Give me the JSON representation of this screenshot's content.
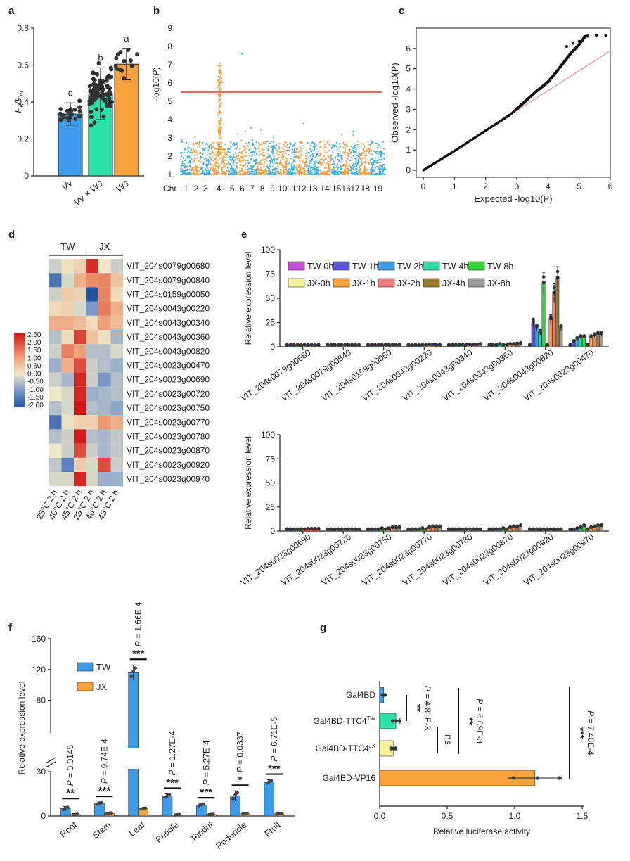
{
  "chart_data": [
    {
      "panel": "a",
      "type": "bar",
      "categories": [
        "Vv",
        "Vv × Ws",
        "Ws"
      ],
      "values": [
        0.335,
        0.445,
        0.605
      ],
      "errors": [
        0.06,
        0.14,
        0.085
      ],
      "letters": [
        "c",
        "b",
        "a"
      ],
      "colors": [
        "#3d9be9",
        "#2ee0a8",
        "#f7a23a"
      ],
      "ylim": [
        0,
        0.8
      ],
      "yticks": [
        "0",
        "0.2",
        "0.4",
        "0.6",
        "0.8"
      ],
      "ylabel_main": "F",
      "ylabel_sub1": "v",
      "ylabel_sep": "/F",
      "ylabel_sub2": "m"
    },
    {
      "panel": "b",
      "type": "scatter",
      "xlabel": "Chr",
      "categories": [
        "1",
        "2",
        "3",
        "4",
        "5",
        "6",
        "7",
        "8",
        "9",
        "10",
        "11",
        "12",
        "13",
        "14",
        "15",
        "16",
        "17",
        "18",
        "19"
      ],
      "ylabel": "-log10(P)",
      "ylim": [
        1,
        9
      ],
      "yticks": [
        "1",
        "2",
        "3",
        "4",
        "5",
        "6",
        "7",
        "8",
        "9"
      ],
      "threshold": 5.5,
      "colors": [
        "#3aaee8",
        "#f39c3a"
      ],
      "peak_chr": "4",
      "peak_value": 7.1
    },
    {
      "panel": "c",
      "type": "scatter",
      "xlabel": "Expected -log10(P)",
      "ylabel": "Observed -log10(P)",
      "xlim": [
        0,
        6
      ],
      "ylim": [
        0,
        7
      ],
      "xticks": [
        "0",
        "1",
        "2",
        "3",
        "4",
        "5",
        "6"
      ],
      "yticks": [
        "0",
        "1",
        "2",
        "3",
        "4",
        "5",
        "6"
      ],
      "points": [
        [
          0,
          0
        ],
        [
          1,
          0.95
        ],
        [
          2,
          1.95
        ],
        [
          2.8,
          2.75
        ],
        [
          3.2,
          3.3
        ],
        [
          3.6,
          3.85
        ],
        [
          4,
          4.35
        ],
        [
          4.3,
          4.9
        ],
        [
          4.5,
          5.3
        ],
        [
          4.7,
          5.7
        ],
        [
          5,
          6.2
        ],
        [
          5.2,
          6.6
        ],
        [
          5.6,
          6.65
        ],
        [
          5.9,
          6.65
        ]
      ]
    },
    {
      "panel": "d",
      "type": "heatmap",
      "groups": [
        "TW",
        "JX"
      ],
      "columns": [
        "25°C 2 h",
        "40°C 2 h",
        "45°C 2 h",
        "25°C 2 h",
        "40°C 2 h",
        "45°C 2 h"
      ],
      "rows": [
        "VIT_204s0079g00680",
        "VIT_204s0079g00840",
        "VIT_204s0159g00050",
        "VIT_204s0043g00220",
        "VIT_204s0043g00340",
        "VIT_204s0043g00360",
        "VIT_204s0043g00820",
        "VIT_204s0023g00470",
        "VIT_204s0023g00690",
        "VIT_204s0023g00720",
        "VIT_204s0023g00750",
        "VIT_204s0023g00770",
        "VIT_204s0023g00780",
        "VIT_204s0023g00870",
        "VIT_204s0023g00920",
        "VIT_204s0023g00970"
      ],
      "values": [
        [
          -0.3,
          0.1,
          0.3,
          2.2,
          0.0,
          -0.3
        ],
        [
          -1.5,
          -0.2,
          0.8,
          1.2,
          1.3,
          0.5
        ],
        [
          -0.3,
          0.4,
          0.3,
          -2.0,
          1.3,
          0.2
        ],
        [
          0.2,
          0.3,
          -0.2,
          -1.0,
          1.4,
          0.8
        ],
        [
          0.8,
          0.8,
          0.6,
          0.2,
          1.0,
          0.6
        ],
        [
          -0.5,
          0.2,
          2.0,
          0.5,
          0.1,
          -0.6
        ],
        [
          -0.3,
          1.3,
          1.0,
          -0.5,
          -0.5,
          -0.2
        ],
        [
          -0.7,
          0.8,
          1.9,
          -0.3,
          -0.5,
          -0.7
        ],
        [
          -0.3,
          -0.6,
          2.3,
          -0.3,
          -1.0,
          -0.5
        ],
        [
          0.0,
          -0.2,
          2.3,
          -0.7,
          -0.6,
          -0.5
        ],
        [
          -0.5,
          -0.2,
          2.5,
          -0.5,
          -0.6,
          -0.8
        ],
        [
          -1.5,
          0.1,
          0.3,
          0.3,
          1.1,
          0.8
        ],
        [
          -0.5,
          -0.3,
          2.4,
          -0.5,
          -0.6,
          -0.4
        ],
        [
          0.0,
          -0.3,
          1.9,
          -0.3,
          -0.6,
          -0.4
        ],
        [
          -0.4,
          -1.3,
          0.4,
          -0.2,
          1.9,
          -0.3
        ],
        [
          -0.2,
          -0.2,
          2.3,
          -0.2,
          -0.7,
          -0.7
        ]
      ],
      "legend_ticks": [
        "2.50",
        "2.00",
        "1.50",
        "1.00",
        "0.50",
        "0.00",
        "-0.50",
        "-1.00",
        "-1.50",
        "-2.00"
      ],
      "vmin": -2.0,
      "vmax": 2.5
    },
    {
      "panel": "e",
      "type": "bar",
      "ylabel": "Relative expression level",
      "ylim": [
        0,
        100
      ],
      "yticks": [
        "0",
        "25",
        "50",
        "75",
        "100"
      ],
      "series": [
        {
          "name": "TW-0h",
          "color": "#c84fd8"
        },
        {
          "name": "TW-1h",
          "color": "#5a55e0"
        },
        {
          "name": "TW-2h",
          "color": "#3d9be9"
        },
        {
          "name": "TW-4h",
          "color": "#2ee0a8"
        },
        {
          "name": "TW-8h",
          "color": "#35d63a"
        },
        {
          "name": "JX-0h",
          "color": "#f8f39a"
        },
        {
          "name": "JX-1h",
          "color": "#f7a23a"
        },
        {
          "name": "JX-2h",
          "color": "#ef7e7e"
        },
        {
          "name": "JX-4h",
          "color": "#9a7a2e"
        },
        {
          "name": "JX-8h",
          "color": "#9a9a9a"
        }
      ],
      "top_genes": [
        "VIT_204s0079g00680",
        "VIT_204s0079g00840",
        "VIT_204s0159g00050",
        "VIT_204s0043g00220",
        "VIT_204s0043g00340",
        "VIT_204s0043g00360",
        "VIT_204s0043g00820",
        "VIT_204s0023g00470"
      ],
      "top_values": [
        [
          1,
          1,
          1,
          1,
          1,
          1,
          1,
          1,
          1,
          1
        ],
        [
          1,
          1,
          1,
          1,
          1,
          1,
          1,
          1,
          1,
          1
        ],
        [
          1,
          1,
          1,
          1,
          1,
          1,
          1,
          1,
          1,
          1
        ],
        [
          1,
          1,
          1,
          1,
          1,
          1,
          1.5,
          1.5,
          1,
          1
        ],
        [
          1,
          1,
          1,
          1,
          1,
          1,
          1.5,
          1.5,
          1.5,
          2
        ],
        [
          1,
          1,
          1,
          2,
          1,
          1,
          2,
          2,
          2.5,
          3
        ],
        [
          1,
          25,
          20,
          15,
          65,
          1,
          28,
          55,
          70,
          20
        ],
        [
          1,
          5,
          8,
          10,
          10,
          1,
          10,
          12,
          13,
          13
        ]
      ],
      "bottom_genes": [
        "VIT_204s0023g00690",
        "VIT_204s0023g00720",
        "VIT_204s0023g00750",
        "VIT_204s0023g00770",
        "VIT_204s0023g00780",
        "VIT_204s0023g00870",
        "VIT_204s0023g00920",
        "VIT_204s0023g00970"
      ],
      "bottom_values": [
        [
          1,
          1,
          1,
          1,
          1,
          1,
          1.5,
          1.5,
          1.5,
          1.5
        ],
        [
          1,
          1,
          1,
          1,
          1,
          1,
          1,
          1,
          1,
          1
        ],
        [
          1,
          1,
          1,
          1,
          2,
          1,
          2,
          3,
          3,
          3
        ],
        [
          1,
          1,
          1,
          1,
          2,
          1,
          3,
          4,
          4,
          4
        ],
        [
          1,
          1,
          1,
          1,
          1,
          1,
          1,
          1,
          1,
          1
        ],
        [
          1,
          1,
          1,
          1,
          2,
          1,
          3,
          4,
          4,
          5
        ],
        [
          1,
          1,
          1,
          1,
          1,
          1,
          1,
          1,
          1,
          1
        ],
        [
          1,
          1,
          2,
          3,
          5,
          1,
          3,
          4,
          5,
          5
        ]
      ]
    },
    {
      "panel": "f",
      "type": "bar",
      "categories": [
        "Root",
        "Stem",
        "Leaf",
        "Petiole",
        "Tendril",
        "Poduncle",
        "Fruit"
      ],
      "series": [
        {
          "name": "TW",
          "color": "#3d9be9",
          "values": [
            5.0,
            8.5,
            116,
            13.5,
            7.5,
            13.5,
            23
          ],
          "errors": [
            1.5,
            1.0,
            10,
            1.5,
            1.0,
            3.5,
            1.5
          ]
        },
        {
          "name": "JX",
          "color": "#f7a23a",
          "values": [
            1.0,
            1.8,
            5.0,
            0.8,
            1.0,
            1.5,
            1.5
          ],
          "errors": [
            0.3,
            0.5,
            0.5,
            0.3,
            0.3,
            0.3,
            0.3
          ]
        }
      ],
      "pvalues": [
        "P = 0.0145",
        "P = 9.74E-4",
        "P = 1.66E-4",
        "P = 1.27E-4",
        "P = 5.27E-4",
        "P = 0.0337",
        "P = 6.71E-5"
      ],
      "stars": [
        "**",
        "***",
        "***",
        "***",
        "***",
        "*",
        "***"
      ],
      "ylabel": "Relative expression level",
      "yticks": [
        "0",
        "30",
        "80",
        "120",
        "160"
      ],
      "break_low": [
        0,
        30
      ],
      "break_high": [
        45,
        160
      ]
    },
    {
      "panel": "g",
      "type": "bar",
      "orientation": "horizontal",
      "categories": [
        "Gal4BD",
        "Gal4BD-TTC4",
        "Gal4BD-TTC4",
        "Gal4BD-VP16"
      ],
      "category_sups": [
        "",
        "TW",
        "JX",
        ""
      ],
      "values": [
        0.03,
        0.12,
        0.1,
        1.15
      ],
      "errors": [
        0.01,
        0.03,
        0.02,
        0.2
      ],
      "colors": [
        "#3d9be9",
        "#2ee0a8",
        "#f8f39a",
        "#f7a23a"
      ],
      "xlabel": "Relative luciferase activity",
      "xlim": [
        0,
        1.5
      ],
      "xticks": [
        "0.0",
        "0.5",
        "1.0",
        "1.5"
      ],
      "comparisons": [
        {
          "stars": "**",
          "p": "P = 4.81E-3"
        },
        {
          "stars": "ns",
          "p": ""
        },
        {
          "stars": "**",
          "p": "P = 6.09E-3"
        },
        {
          "stars": "***",
          "p": "P = 7.48E-4"
        }
      ]
    }
  ],
  "panel_letters": [
    "a",
    "b",
    "c",
    "d",
    "e",
    "f",
    "g"
  ]
}
